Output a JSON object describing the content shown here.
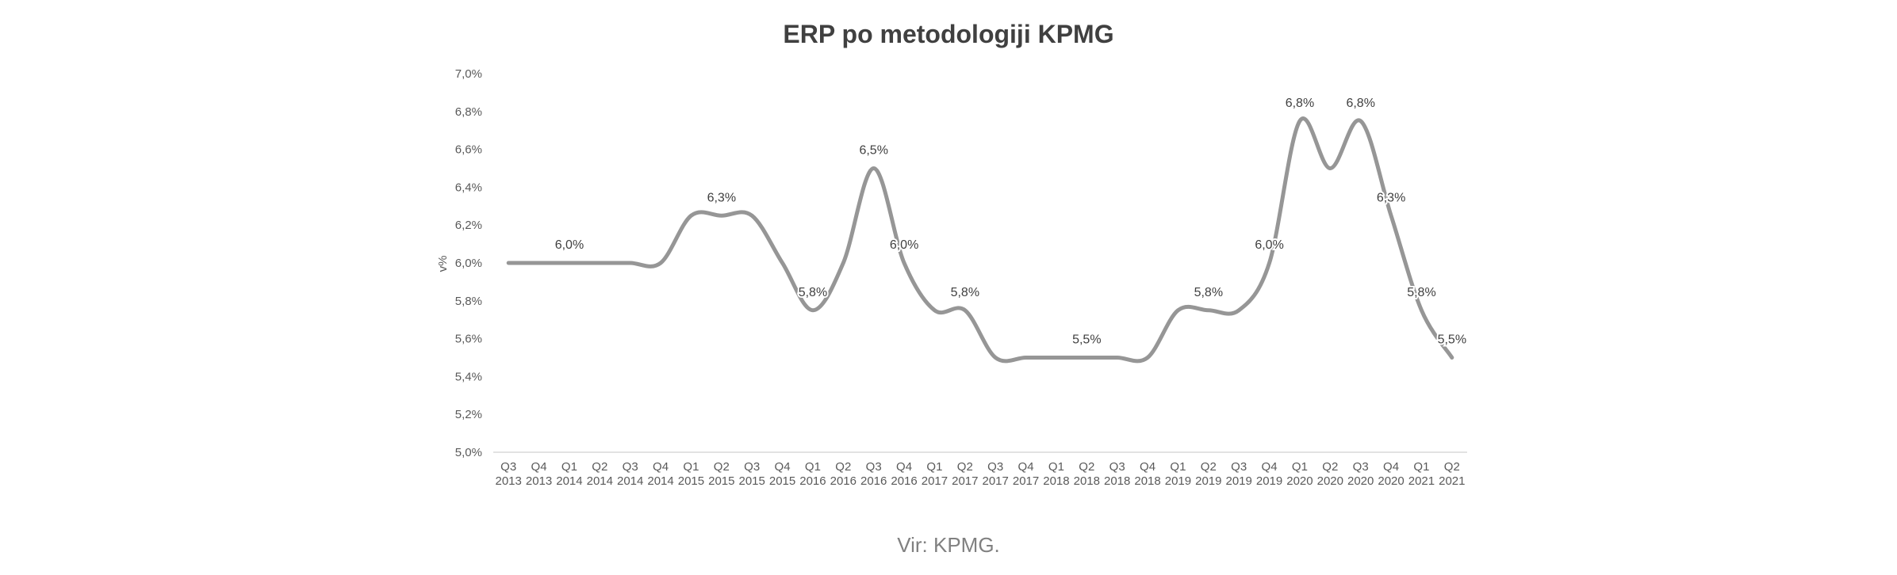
{
  "chart_data": {
    "type": "line",
    "title": "ERP po metodologiji KPMG",
    "ylabel": "v%",
    "xlabel": "",
    "ylim": [
      5.0,
      7.0
    ],
    "yticks": [
      "5,0%",
      "5,2%",
      "5,4%",
      "5,6%",
      "5,8%",
      "6,0%",
      "6,2%",
      "6,4%",
      "6,6%",
      "6,8%",
      "7,0%"
    ],
    "grid": false,
    "legend": "none",
    "line_color": "#969696",
    "categories": [
      {
        "q": "Q3",
        "y": "2013"
      },
      {
        "q": "Q4",
        "y": "2013"
      },
      {
        "q": "Q1",
        "y": "2014"
      },
      {
        "q": "Q2",
        "y": "2014"
      },
      {
        "q": "Q3",
        "y": "2014"
      },
      {
        "q": "Q4",
        "y": "2014"
      },
      {
        "q": "Q1",
        "y": "2015"
      },
      {
        "q": "Q2",
        "y": "2015"
      },
      {
        "q": "Q3",
        "y": "2015"
      },
      {
        "q": "Q4",
        "y": "2015"
      },
      {
        "q": "Q1",
        "y": "2016"
      },
      {
        "q": "Q2",
        "y": "2016"
      },
      {
        "q": "Q3",
        "y": "2016"
      },
      {
        "q": "Q4",
        "y": "2016"
      },
      {
        "q": "Q1",
        "y": "2017"
      },
      {
        "q": "Q2",
        "y": "2017"
      },
      {
        "q": "Q3",
        "y": "2017"
      },
      {
        "q": "Q4",
        "y": "2017"
      },
      {
        "q": "Q1",
        "y": "2018"
      },
      {
        "q": "Q2",
        "y": "2018"
      },
      {
        "q": "Q3",
        "y": "2018"
      },
      {
        "q": "Q4",
        "y": "2018"
      },
      {
        "q": "Q1",
        "y": "2019"
      },
      {
        "q": "Q2",
        "y": "2019"
      },
      {
        "q": "Q3",
        "y": "2019"
      },
      {
        "q": "Q4",
        "y": "2019"
      },
      {
        "q": "Q1",
        "y": "2020"
      },
      {
        "q": "Q2",
        "y": "2020"
      },
      {
        "q": "Q3",
        "y": "2020"
      },
      {
        "q": "Q4",
        "y": "2020"
      },
      {
        "q": "Q1",
        "y": "2021"
      },
      {
        "q": "Q2",
        "y": "2021"
      }
    ],
    "values": [
      6.0,
      6.0,
      6.0,
      6.0,
      6.0,
      6.0,
      6.25,
      6.25,
      6.25,
      6.0,
      5.75,
      6.0,
      6.5,
      6.0,
      5.75,
      5.75,
      5.5,
      5.5,
      5.5,
      5.5,
      5.5,
      5.5,
      5.75,
      5.75,
      5.75,
      6.0,
      6.75,
      6.5,
      6.75,
      6.25,
      5.75,
      5.5
    ],
    "data_labels": [
      {
        "index": 2,
        "text": "6,0%"
      },
      {
        "index": 7,
        "text": "6,3%"
      },
      {
        "index": 10,
        "text": "5,8%"
      },
      {
        "index": 12,
        "text": "6,5%"
      },
      {
        "index": 13,
        "text": "6,0%"
      },
      {
        "index": 15,
        "text": "5,8%"
      },
      {
        "index": 19,
        "text": "5,5%"
      },
      {
        "index": 23,
        "text": "5,8%"
      },
      {
        "index": 25,
        "text": "6,0%"
      },
      {
        "index": 26,
        "text": "6,8%"
      },
      {
        "index": 28,
        "text": "6,8%"
      },
      {
        "index": 29,
        "text": "6,3%"
      },
      {
        "index": 30,
        "text": "5,8%"
      },
      {
        "index": 31,
        "text": "5,5%"
      }
    ]
  },
  "source": "Vir: KPMG."
}
